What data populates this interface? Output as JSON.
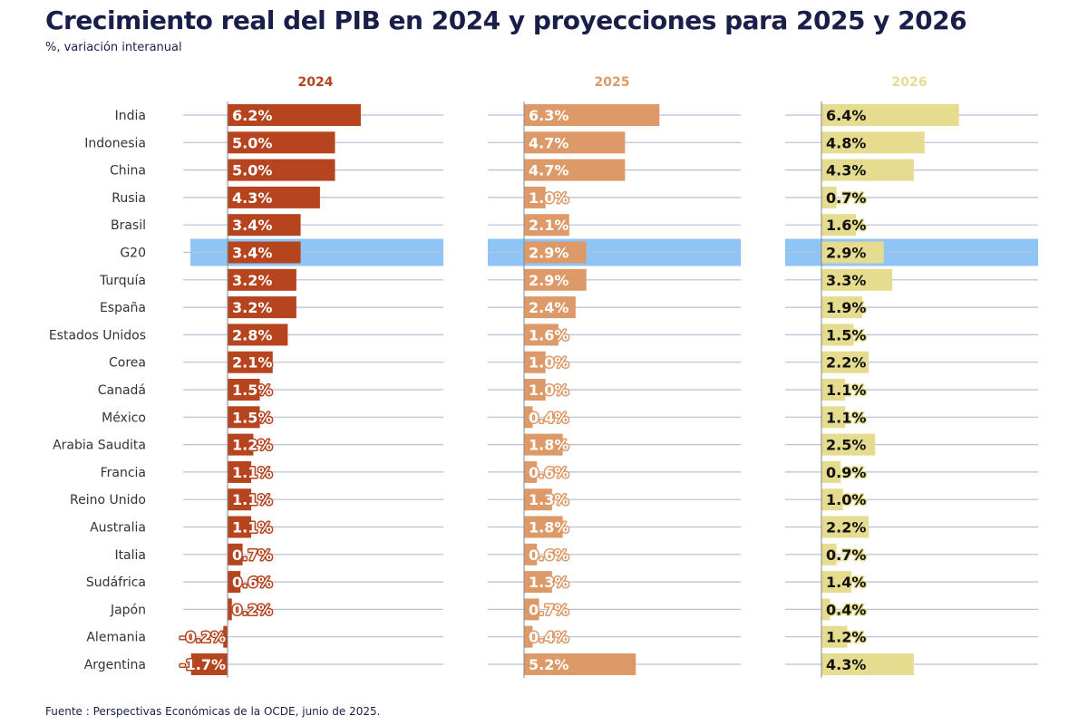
{
  "title": "Crecimiento real del PIB en 2024 y proyecciones para 2025 y 2026",
  "subtitle": "%, variación interanual",
  "source": "Fuente : Perspectivas Económicas de la OCDE, junio de 2025.",
  "colors": {
    "c2024": "#b5441f",
    "c2025": "#dd9a68",
    "c2026": "#e6dc90",
    "highlight": "#8fc4f7",
    "grid": "#b8bfd6",
    "text": "#333333"
  },
  "chart_data": {
    "type": "bar",
    "orientation": "horizontal",
    "highlight_category": "G20",
    "categories": [
      "India",
      "Indonesia",
      "China",
      "Rusia",
      "Brasil",
      "G20",
      "Turquía",
      "España",
      "Estados Unidos",
      "Corea",
      "Canadá",
      "México",
      "Arabia Saudita",
      "Francia",
      "Reino Unido",
      "Australia",
      "Italia",
      "Sudáfrica",
      "Japón",
      "Alemania",
      "Argentina"
    ],
    "series": [
      {
        "name": "2024",
        "values": [
          6.2,
          5.0,
          5.0,
          4.3,
          3.4,
          3.4,
          3.2,
          3.2,
          2.8,
          2.1,
          1.5,
          1.5,
          1.2,
          1.1,
          1.1,
          1.1,
          0.7,
          0.6,
          0.2,
          -0.2,
          -1.7
        ],
        "labels": [
          "6.2%",
          "5.0%",
          "5.0%",
          "4.3%",
          "3.4%",
          "3.4%",
          "3.2%",
          "3.2%",
          "2.8%",
          "2.1%",
          "1.5%",
          "1.5%",
          "1.2%",
          "1.1%",
          "1.1%",
          "1.1%",
          "0.7%",
          "0.6%",
          "0.2%",
          "-0.2%",
          "-1.7%"
        ]
      },
      {
        "name": "2025",
        "values": [
          6.3,
          4.7,
          4.7,
          1.0,
          2.1,
          2.9,
          2.9,
          2.4,
          1.6,
          1.0,
          1.0,
          0.4,
          1.8,
          0.6,
          1.3,
          1.8,
          0.6,
          1.3,
          0.7,
          0.4,
          5.2
        ],
        "labels": [
          "6.3%",
          "4.7%",
          "4.7%",
          "1.0%",
          "2.1%",
          "2.9%",
          "2.9%",
          "2.4%",
          "1.6%",
          "1.0%",
          "1.0%",
          "0.4%",
          "1.8%",
          "0.6%",
          "1.3%",
          "1.8%",
          "0.6%",
          "1.3%",
          "0.7%",
          "0.4%",
          "5.2%"
        ]
      },
      {
        "name": "2026",
        "values": [
          6.4,
          4.8,
          4.3,
          0.7,
          1.6,
          2.9,
          3.3,
          1.9,
          1.5,
          2.2,
          1.1,
          1.1,
          2.5,
          0.9,
          1.0,
          2.2,
          0.7,
          1.4,
          0.4,
          1.2,
          4.3
        ],
        "labels": [
          "6.4%",
          "4.8%",
          "4.3%",
          "0.7%",
          "1.6%",
          "2.9%",
          "3.3%",
          "1.9%",
          "1.5%",
          "2.2%",
          "1.1%",
          "1.1%",
          "2.5%",
          "0.9%",
          "1.0%",
          "2.2%",
          "0.7%",
          "1.4%",
          "0.4%",
          "1.2%",
          "4.3%"
        ]
      }
    ]
  }
}
